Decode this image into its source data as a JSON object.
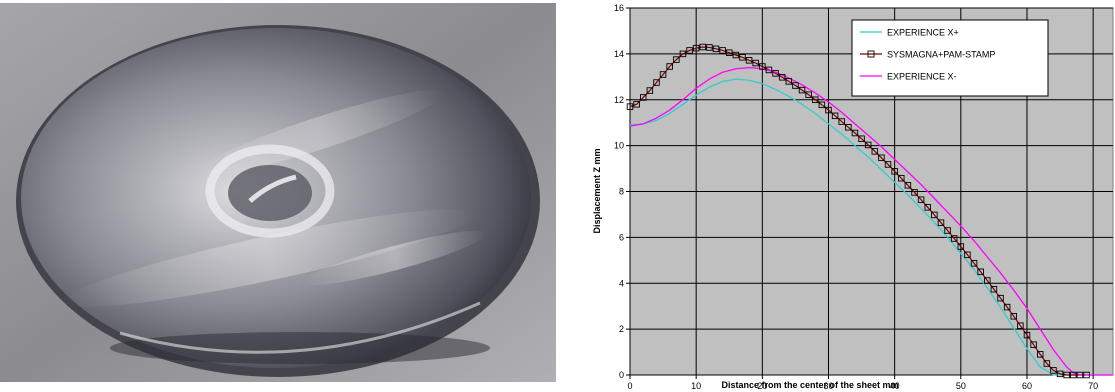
{
  "chart_data": {
    "type": "line",
    "title": "",
    "xlabel": "Distance from the center of the sheet mm",
    "ylabel": "Displacement Z mm",
    "xlim": [
      0,
      73
    ],
    "ylim": [
      0,
      16
    ],
    "xticks": [
      0,
      10,
      20,
      30,
      40,
      50,
      60,
      70
    ],
    "yticks": [
      0,
      2,
      4,
      6,
      8,
      10,
      12,
      14,
      16
    ],
    "xtick_labels": [
      "0",
      "10",
      "20",
      "30",
      "40",
      "50",
      "60",
      "70"
    ],
    "ytick_labels": [
      "0",
      "2",
      "4",
      "6",
      "8",
      "10",
      "12",
      "14",
      "16"
    ],
    "grid": true,
    "legend_position": "top-right",
    "plot_background": "#c0c0c0",
    "series": [
      {
        "name": "EXPERIENCE X+",
        "color": "#33cccc",
        "marker": "none",
        "x": [
          0,
          2,
          4,
          6,
          8,
          10,
          12,
          14,
          16,
          18,
          20,
          22,
          24,
          26,
          28,
          30,
          32,
          34,
          36,
          38,
          40,
          42,
          44,
          46,
          48,
          50,
          52,
          54,
          56,
          58,
          60,
          62,
          64,
          66,
          68,
          70,
          73
        ],
        "y": [
          10.9,
          10.95,
          11.1,
          11.4,
          11.8,
          12.2,
          12.55,
          12.8,
          12.9,
          12.85,
          12.7,
          12.45,
          12.15,
          11.8,
          11.4,
          10.95,
          10.5,
          10.0,
          9.5,
          8.95,
          8.4,
          7.85,
          7.25,
          6.65,
          6.0,
          5.3,
          4.6,
          3.8,
          2.95,
          2.05,
          1.15,
          0.35,
          0.0,
          0.0,
          0.0,
          0.0,
          0.0
        ]
      },
      {
        "name": "SYSMAGNA+PAM-STAMP",
        "color": "#800000",
        "marker": "square",
        "x": [
          0,
          1,
          2,
          3,
          4,
          5,
          6,
          7,
          8,
          9,
          10,
          11,
          12,
          13,
          14,
          15,
          16,
          17,
          18,
          19,
          20,
          21,
          22,
          23,
          24,
          25,
          26,
          27,
          28,
          29,
          30,
          31,
          32,
          33,
          34,
          35,
          36,
          37,
          38,
          39,
          40,
          41,
          42,
          43,
          44,
          45,
          46,
          47,
          48,
          49,
          50,
          51,
          52,
          53,
          54,
          55,
          56,
          57,
          58,
          59,
          60,
          61,
          62,
          63,
          64,
          65,
          66,
          67,
          68,
          69
        ],
        "y": [
          11.7,
          11.8,
          12.1,
          12.4,
          12.75,
          13.1,
          13.45,
          13.75,
          14.0,
          14.15,
          14.25,
          14.3,
          14.28,
          14.22,
          14.15,
          14.05,
          13.95,
          13.85,
          13.72,
          13.6,
          13.45,
          13.3,
          13.15,
          12.98,
          12.8,
          12.62,
          12.42,
          12.22,
          12.0,
          11.78,
          11.55,
          11.3,
          11.05,
          10.8,
          10.55,
          10.3,
          10.03,
          9.75,
          9.47,
          9.18,
          8.88,
          8.58,
          8.27,
          7.96,
          7.64,
          7.31,
          6.98,
          6.64,
          6.3,
          5.95,
          5.6,
          5.24,
          4.87,
          4.5,
          4.12,
          3.74,
          3.35,
          2.96,
          2.56,
          2.15,
          1.74,
          1.32,
          0.9,
          0.5,
          0.2,
          0.05,
          0.0,
          0.0,
          0.0,
          0.0
        ]
      },
      {
        "name": "EXPERIENCE X-",
        "color": "#ff00ff",
        "marker": "none",
        "x": [
          0,
          2,
          4,
          6,
          8,
          10,
          12,
          14,
          16,
          18,
          20,
          22,
          24,
          26,
          28,
          30,
          32,
          34,
          36,
          38,
          40,
          42,
          44,
          46,
          48,
          50,
          52,
          54,
          56,
          58,
          60,
          62,
          64,
          66,
          67,
          68,
          70,
          73
        ],
        "y": [
          10.85,
          10.95,
          11.2,
          11.55,
          12.0,
          12.5,
          12.9,
          13.2,
          13.35,
          13.4,
          13.35,
          13.2,
          12.95,
          12.65,
          12.3,
          11.9,
          11.45,
          10.95,
          10.45,
          9.95,
          9.4,
          8.85,
          8.3,
          7.7,
          7.1,
          6.5,
          5.85,
          5.15,
          4.45,
          3.7,
          2.9,
          2.0,
          1.1,
          0.35,
          0.1,
          0.0,
          0.0,
          0.0
        ]
      }
    ]
  }
}
